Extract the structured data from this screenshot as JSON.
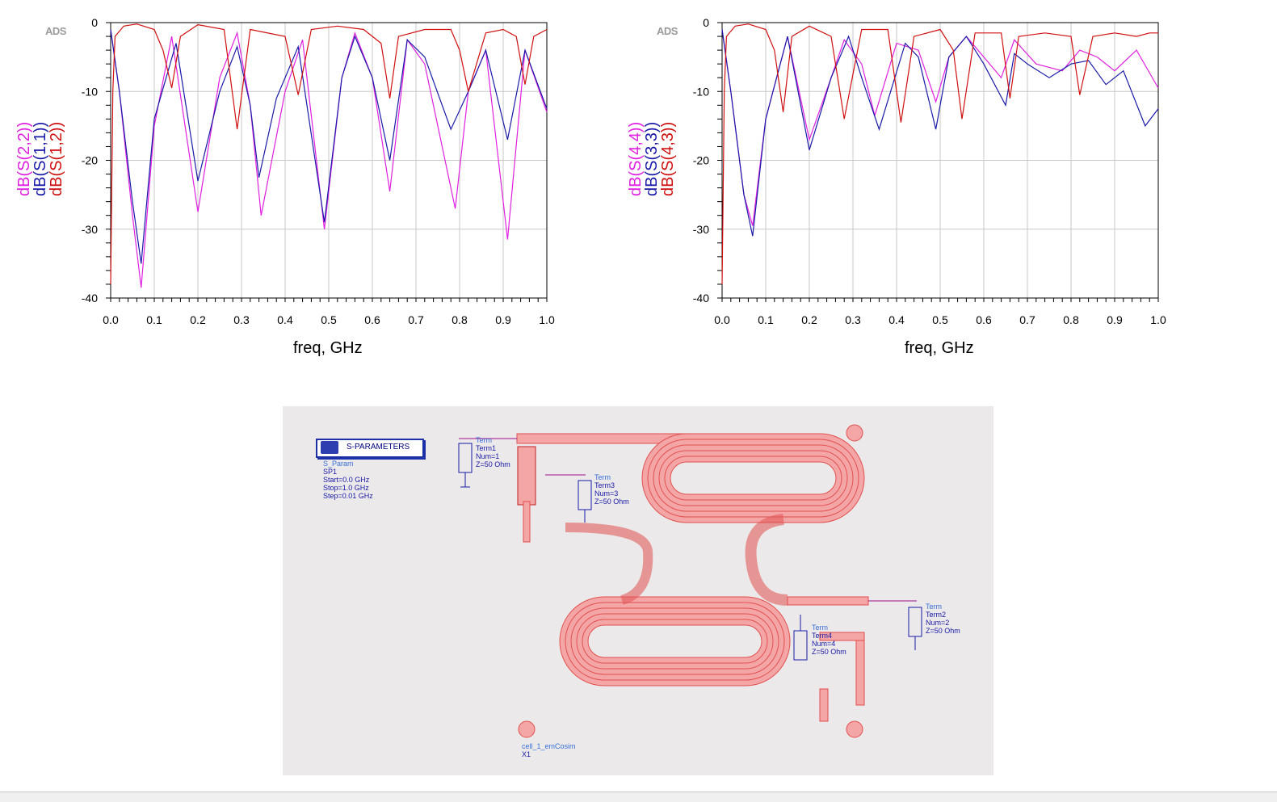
{
  "app": "ADS",
  "plots": {
    "left": {
      "ads_label": "ADS",
      "ylabels": [
        {
          "text": "dB(S(2,2))",
          "color": "#e020e0"
        },
        {
          "text": "dB(S(1,1))",
          "color": "#1a1aa8"
        },
        {
          "text": "dB(S(1,2))",
          "color": "#d01010"
        }
      ],
      "xlabel": "freq, GHz"
    },
    "right": {
      "ads_label": "ADS",
      "ylabels": [
        {
          "text": "dB(S(4,4))",
          "color": "#e020e0"
        },
        {
          "text": "dB(S(3,3))",
          "color": "#1a1aa8"
        },
        {
          "text": "dB(S(4,3))",
          "color": "#d01010"
        }
      ],
      "xlabel": "freq, GHz"
    }
  },
  "chart_data": [
    {
      "type": "line",
      "xlabel": "freq, GHz",
      "ylabel": "",
      "xlim": [
        0.0,
        1.0
      ],
      "ylim": [
        -40,
        0
      ],
      "xticks": [
        "0.0",
        "0.1",
        "0.2",
        "0.3",
        "0.4",
        "0.5",
        "0.6",
        "0.7",
        "0.8",
        "0.9",
        "1.0"
      ],
      "yticks": [
        "0",
        "-10",
        "-20",
        "-30",
        "-40"
      ],
      "grid": true,
      "series": [
        {
          "name": "dB(S(2,2))",
          "color": "#e020e0",
          "x": [
            0.0,
            0.02,
            0.05,
            0.07,
            0.1,
            0.14,
            0.2,
            0.25,
            0.29,
            0.32,
            0.345,
            0.4,
            0.44,
            0.49,
            0.53,
            0.56,
            0.6,
            0.64,
            0.68,
            0.72,
            0.79,
            0.82,
            0.86,
            0.91,
            0.95,
            1.0
          ],
          "y": [
            -1,
            -10,
            -28,
            -38.5,
            -15,
            -2,
            -27.5,
            -8,
            -1.5,
            -12,
            -28,
            -10,
            -2.5,
            -30,
            -8,
            -1.5,
            -8,
            -24.5,
            -2.5,
            -6,
            -27,
            -10,
            -4,
            -31.5,
            -4,
            -13
          ]
        },
        {
          "name": "dB(S(1,1))",
          "color": "#1a1aa8",
          "x": [
            0.0,
            0.02,
            0.05,
            0.07,
            0.1,
            0.15,
            0.2,
            0.25,
            0.29,
            0.32,
            0.34,
            0.38,
            0.43,
            0.49,
            0.53,
            0.56,
            0.6,
            0.64,
            0.68,
            0.72,
            0.78,
            0.82,
            0.86,
            0.91,
            0.95,
            1.0
          ],
          "y": [
            -1,
            -10,
            -26,
            -35,
            -14,
            -3,
            -23,
            -10,
            -3.5,
            -12,
            -22.5,
            -11,
            -3.5,
            -29,
            -8,
            -2,
            -8,
            -20,
            -2.5,
            -5,
            -15.5,
            -10,
            -4,
            -17,
            -4,
            -12.5
          ]
        },
        {
          "name": "dB(S(1,2))",
          "color": "#d01010",
          "x": [
            0.0,
            0.005,
            0.01,
            0.03,
            0.06,
            0.1,
            0.12,
            0.14,
            0.16,
            0.2,
            0.26,
            0.29,
            0.32,
            0.4,
            0.43,
            0.46,
            0.52,
            0.58,
            0.62,
            0.64,
            0.66,
            0.72,
            0.78,
            0.8,
            0.82,
            0.86,
            0.9,
            0.93,
            0.95,
            0.97,
            1.0
          ],
          "y": [
            -38,
            -10,
            -2,
            -0.5,
            -0.2,
            -1,
            -4,
            -9.5,
            -2,
            -0.3,
            -1,
            -15.5,
            -1,
            -2,
            -10.5,
            -1,
            -0.5,
            -1,
            -3,
            -11,
            -2,
            -1,
            -1,
            -4,
            -10,
            -1.5,
            -1,
            -2,
            -9,
            -2,
            -1
          ]
        }
      ]
    },
    {
      "type": "line",
      "xlabel": "freq, GHz",
      "ylabel": "",
      "xlim": [
        0.0,
        1.0
      ],
      "ylim": [
        -40,
        0
      ],
      "xticks": [
        "0.0",
        "0.1",
        "0.2",
        "0.3",
        "0.4",
        "0.5",
        "0.6",
        "0.7",
        "0.8",
        "0.9",
        "1.0"
      ],
      "yticks": [
        "0",
        "-10",
        "-20",
        "-30",
        "-40"
      ],
      "grid": true,
      "series": [
        {
          "name": "dB(S(4,4))",
          "color": "#e020e0",
          "x": [
            0.0,
            0.02,
            0.05,
            0.07,
            0.1,
            0.15,
            0.2,
            0.25,
            0.28,
            0.32,
            0.35,
            0.4,
            0.45,
            0.49,
            0.52,
            0.56,
            0.6,
            0.64,
            0.67,
            0.72,
            0.78,
            0.82,
            0.86,
            0.9,
            0.95,
            1.0
          ],
          "y": [
            -1,
            -10,
            -25,
            -29.5,
            -14,
            -2,
            -17,
            -8,
            -2.5,
            -6,
            -13.5,
            -3,
            -4,
            -11.5,
            -5,
            -2,
            -5,
            -8,
            -2.5,
            -6,
            -7,
            -4,
            -5,
            -7,
            -4,
            -9.5
          ]
        },
        {
          "name": "dB(S(3,3))",
          "color": "#1a1aa8",
          "x": [
            0.0,
            0.02,
            0.05,
            0.07,
            0.1,
            0.15,
            0.2,
            0.25,
            0.29,
            0.32,
            0.36,
            0.42,
            0.45,
            0.49,
            0.52,
            0.56,
            0.6,
            0.65,
            0.67,
            0.7,
            0.75,
            0.8,
            0.84,
            0.88,
            0.92,
            0.97,
            1.0
          ],
          "y": [
            -1,
            -10,
            -25,
            -31,
            -14,
            -2,
            -18.5,
            -8,
            -2,
            -8,
            -15.5,
            -3,
            -5,
            -15.5,
            -5,
            -2,
            -6,
            -12,
            -4.5,
            -6,
            -8,
            -6,
            -5.5,
            -9,
            -7,
            -15,
            -12.5
          ]
        },
        {
          "name": "dB(S(4,3))",
          "color": "#d01010",
          "x": [
            0.0,
            0.005,
            0.01,
            0.03,
            0.06,
            0.1,
            0.12,
            0.14,
            0.16,
            0.2,
            0.25,
            0.28,
            0.32,
            0.38,
            0.41,
            0.44,
            0.5,
            0.53,
            0.55,
            0.58,
            0.64,
            0.66,
            0.68,
            0.74,
            0.8,
            0.82,
            0.85,
            0.9,
            0.95,
            0.98,
            1.0
          ],
          "y": [
            -38,
            -10,
            -2,
            -0.5,
            -0.2,
            -1,
            -4,
            -13,
            -2,
            -0.5,
            -2,
            -14,
            -1,
            -1,
            -14.5,
            -2,
            -1,
            -4,
            -14,
            -1.5,
            -1.5,
            -11,
            -2,
            -1.5,
            -2,
            -10.5,
            -2,
            -1.5,
            -2,
            -1.5,
            -1.5
          ]
        }
      ]
    }
  ],
  "schematic": {
    "sparam_title": "S-PARAMETERS",
    "sparam_lines": [
      "S_Param",
      "SP1",
      "Start=0.0 GHz",
      "Stop=1.0 GHz",
      "Step=0.01 GHz"
    ],
    "term1": [
      "Term",
      "Term1",
      "Num=1",
      "Z=50 Ohm"
    ],
    "term3": [
      "Term",
      "Term3",
      "Num=3",
      "Z=50 Ohm"
    ],
    "term2": [
      "Term",
      "Term2",
      "Num=2",
      "Z=50 Ohm"
    ],
    "term4": [
      "Term",
      "Term4",
      "Num=4",
      "Z=50 Ohm"
    ],
    "cell_label": [
      "cell_1_emCosim",
      "X1"
    ]
  }
}
